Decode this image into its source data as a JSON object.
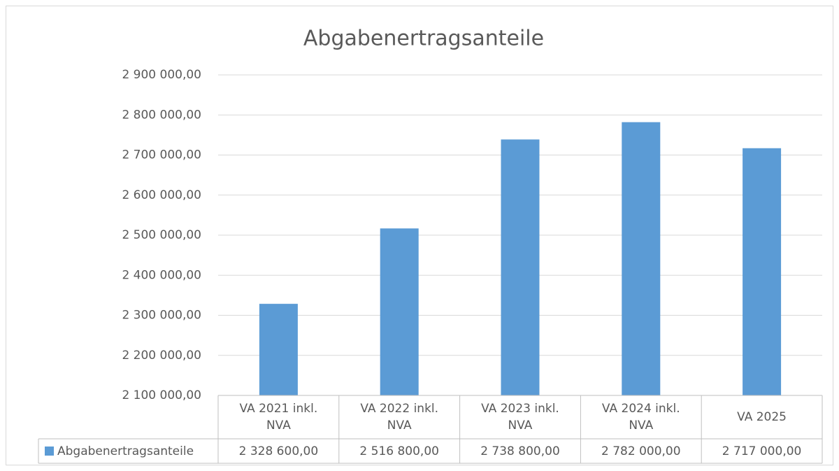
{
  "chart_data": {
    "type": "bar",
    "title": "Abgabenertragsanteile",
    "categories": [
      "VA 2021 inkl. NVA",
      "VA 2022 inkl. NVA",
      "VA 2023 inkl. NVA",
      "VA 2024 inkl. NVA",
      "VA 2025"
    ],
    "series": [
      {
        "name": "Abgabenertragsanteile",
        "color": "#5b9bd5",
        "values": [
          2328600,
          2516800,
          2738800,
          2782000,
          2717000
        ],
        "value_labels": [
          "2 328 600,00",
          "2 516 800,00",
          "2 738 800,00",
          "2 782 000,00",
          "2 717 000,00"
        ]
      }
    ],
    "ylim": [
      2100000,
      2900000
    ],
    "yticks": [
      {
        "value": 2100000,
        "label": "2 100 000,00"
      },
      {
        "value": 2200000,
        "label": "2 200 000,00"
      },
      {
        "value": 2300000,
        "label": "2 300 000,00"
      },
      {
        "value": 2400000,
        "label": "2 400 000,00"
      },
      {
        "value": 2500000,
        "label": "2 500 000,00"
      },
      {
        "value": 2600000,
        "label": "2 600 000,00"
      },
      {
        "value": 2700000,
        "label": "2 700 000,00"
      },
      {
        "value": 2800000,
        "label": "2 800 000,00"
      },
      {
        "value": 2900000,
        "label": "2 900 000,00"
      }
    ],
    "grid": true,
    "data_table": true
  }
}
